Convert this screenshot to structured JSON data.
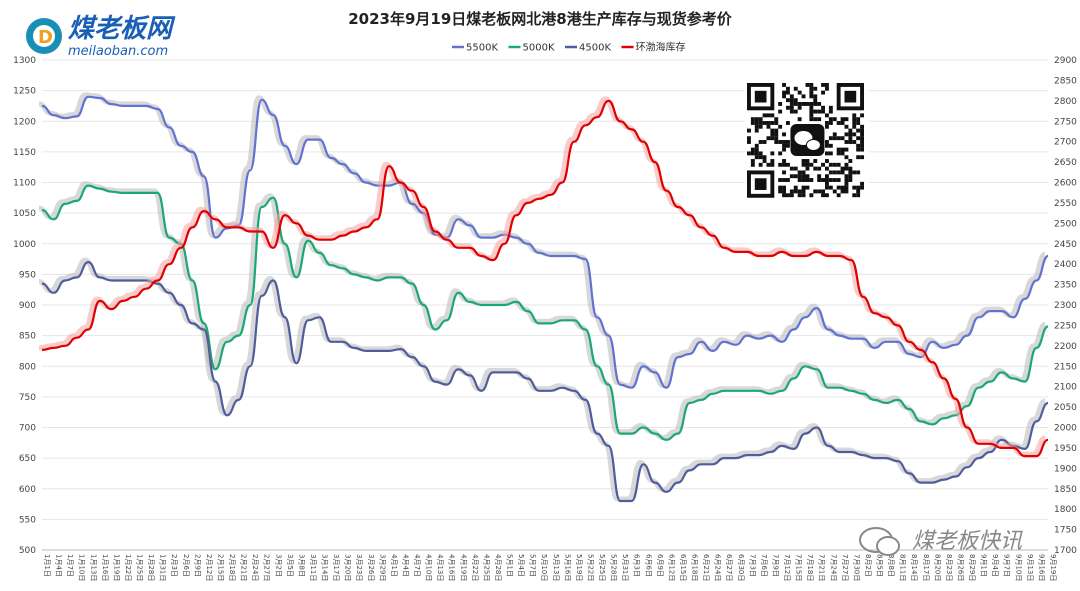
{
  "logo": {
    "name": "煤老板网",
    "domain": "meilaoban.com"
  },
  "watermark": "煤老板快讯",
  "chart_data": {
    "type": "line",
    "title": "2023年9月19日煤老板网北港8港生产库存与现货参考价",
    "left_axis": {
      "min": 500,
      "max": 1300,
      "step": 50
    },
    "right_axis": {
      "min": 1700,
      "max": 2900,
      "step": 50
    },
    "x_labels": [
      "1月1日",
      "1月4日",
      "1月7日",
      "1月10日",
      "1月13日",
      "1月16日",
      "1月19日",
      "1月22日",
      "1月25日",
      "1月28日",
      "1月31日",
      "2月3日",
      "2月6日",
      "2月9日",
      "2月12日",
      "2月15日",
      "2月18日",
      "2月21日",
      "2月24日",
      "2月27日",
      "3月2日",
      "3月5日",
      "3月8日",
      "3月11日",
      "3月14日",
      "3月17日",
      "3月20日",
      "3月23日",
      "3月26日",
      "3月29日",
      "4月1日",
      "4月4日",
      "4月7日",
      "4月10日",
      "4月13日",
      "4月16日",
      "4月19日",
      "4月22日",
      "4月25日",
      "4月28日",
      "5月1日",
      "5月4日",
      "5月7日",
      "5月10日",
      "5月13日",
      "5月16日",
      "5月19日",
      "5月22日",
      "5月25日",
      "5月28日",
      "5月31日",
      "6月3日",
      "6月6日",
      "6月9日",
      "6月12日",
      "6月15日",
      "6月18日",
      "6月21日",
      "6月24日",
      "6月27日",
      "6月30日",
      "7月3日",
      "7月6日",
      "7月9日",
      "7月12日",
      "7月15日",
      "7月18日",
      "7月21日",
      "7月24日",
      "7月27日",
      "7月30日",
      "8月2日",
      "8月5日",
      "8月8日",
      "8月11日",
      "8月14日",
      "8月17日",
      "8月20日",
      "8月23日",
      "8月26日",
      "8月29日",
      "9月1日",
      "9月4日",
      "9月7日",
      "9月10日",
      "9月13日",
      "9月16日",
      "9月19日"
    ],
    "series": [
      {
        "name": "5500K",
        "axis": "left",
        "color": "#6272d1",
        "values": [
          1225,
          1210,
          1205,
          1208,
          1240,
          1238,
          1228,
          1225,
          1225,
          1225,
          1220,
          1190,
          1160,
          1150,
          1110,
          1010,
          1025,
          1030,
          1120,
          1235,
          1210,
          1160,
          1130,
          1170,
          1170,
          1140,
          1130,
          1115,
          1100,
          1095,
          1095,
          1100,
          1065,
          1050,
          1015,
          1010,
          1040,
          1030,
          1010,
          1010,
          1015,
          1010,
          1000,
          985,
          980,
          980,
          980,
          975,
          880,
          850,
          770,
          765,
          800,
          790,
          765,
          815,
          820,
          840,
          825,
          840,
          835,
          850,
          845,
          850,
          840,
          860,
          880,
          895,
          860,
          850,
          845,
          845,
          830,
          840,
          840,
          820,
          815,
          840,
          830,
          835,
          850,
          880,
          890,
          890,
          880,
          910,
          940,
          980
        ]
      },
      {
        "name": "5000K",
        "axis": "left",
        "color": "#1aa873",
        "values": [
          1055,
          1040,
          1065,
          1070,
          1095,
          1090,
          1085,
          1083,
          1083,
          1083,
          1083,
          1010,
          1000,
          940,
          870,
          795,
          840,
          850,
          900,
          1060,
          1075,
          1000,
          945,
          1005,
          985,
          965,
          960,
          950,
          945,
          940,
          945,
          945,
          935,
          900,
          860,
          875,
          920,
          905,
          900,
          900,
          900,
          905,
          890,
          870,
          870,
          875,
          875,
          860,
          800,
          770,
          690,
          690,
          700,
          690,
          680,
          690,
          740,
          745,
          755,
          760,
          760,
          760,
          760,
          755,
          760,
          780,
          800,
          795,
          765,
          765,
          760,
          755,
          745,
          740,
          745,
          730,
          710,
          705,
          715,
          720,
          735,
          765,
          775,
          790,
          780,
          775,
          830,
          865
        ]
      },
      {
        "name": "4500K",
        "axis": "left",
        "color": "#4f5d9c",
        "values": [
          935,
          920,
          940,
          945,
          970,
          945,
          940,
          940,
          940,
          940,
          935,
          920,
          900,
          870,
          860,
          775,
          720,
          745,
          800,
          915,
          940,
          880,
          805,
          875,
          880,
          840,
          840,
          830,
          825,
          825,
          825,
          828,
          815,
          800,
          775,
          770,
          795,
          785,
          760,
          790,
          790,
          790,
          780,
          760,
          760,
          765,
          760,
          745,
          690,
          670,
          580,
          580,
          640,
          610,
          595,
          610,
          630,
          640,
          640,
          650,
          650,
          655,
          655,
          660,
          670,
          665,
          690,
          700,
          670,
          660,
          660,
          655,
          650,
          650,
          645,
          625,
          610,
          610,
          615,
          620,
          635,
          650,
          660,
          680,
          670,
          665,
          710,
          740
        ]
      },
      {
        "name": "环渤海库存",
        "axis": "right",
        "color": "#e00000",
        "values": [
          2190,
          2195,
          2200,
          2220,
          2240,
          2310,
          2290,
          2310,
          2320,
          2340,
          2360,
          2400,
          2440,
          2490,
          2530,
          2510,
          2490,
          2490,
          2480,
          2480,
          2440,
          2520,
          2500,
          2470,
          2460,
          2460,
          2470,
          2480,
          2490,
          2510,
          2640,
          2600,
          2580,
          2540,
          2480,
          2460,
          2440,
          2440,
          2420,
          2410,
          2450,
          2520,
          2550,
          2560,
          2570,
          2600,
          2700,
          2740,
          2760,
          2800,
          2750,
          2730,
          2700,
          2650,
          2580,
          2540,
          2520,
          2490,
          2470,
          2440,
          2430,
          2430,
          2420,
          2420,
          2430,
          2420,
          2420,
          2430,
          2420,
          2420,
          2410,
          2320,
          2280,
          2270,
          2250,
          2210,
          2190,
          2160,
          2120,
          2070,
          2000,
          1960,
          1960,
          1950,
          1950,
          1930,
          1930,
          1970
        ]
      }
    ],
    "legend_position": "top",
    "grid": true
  }
}
